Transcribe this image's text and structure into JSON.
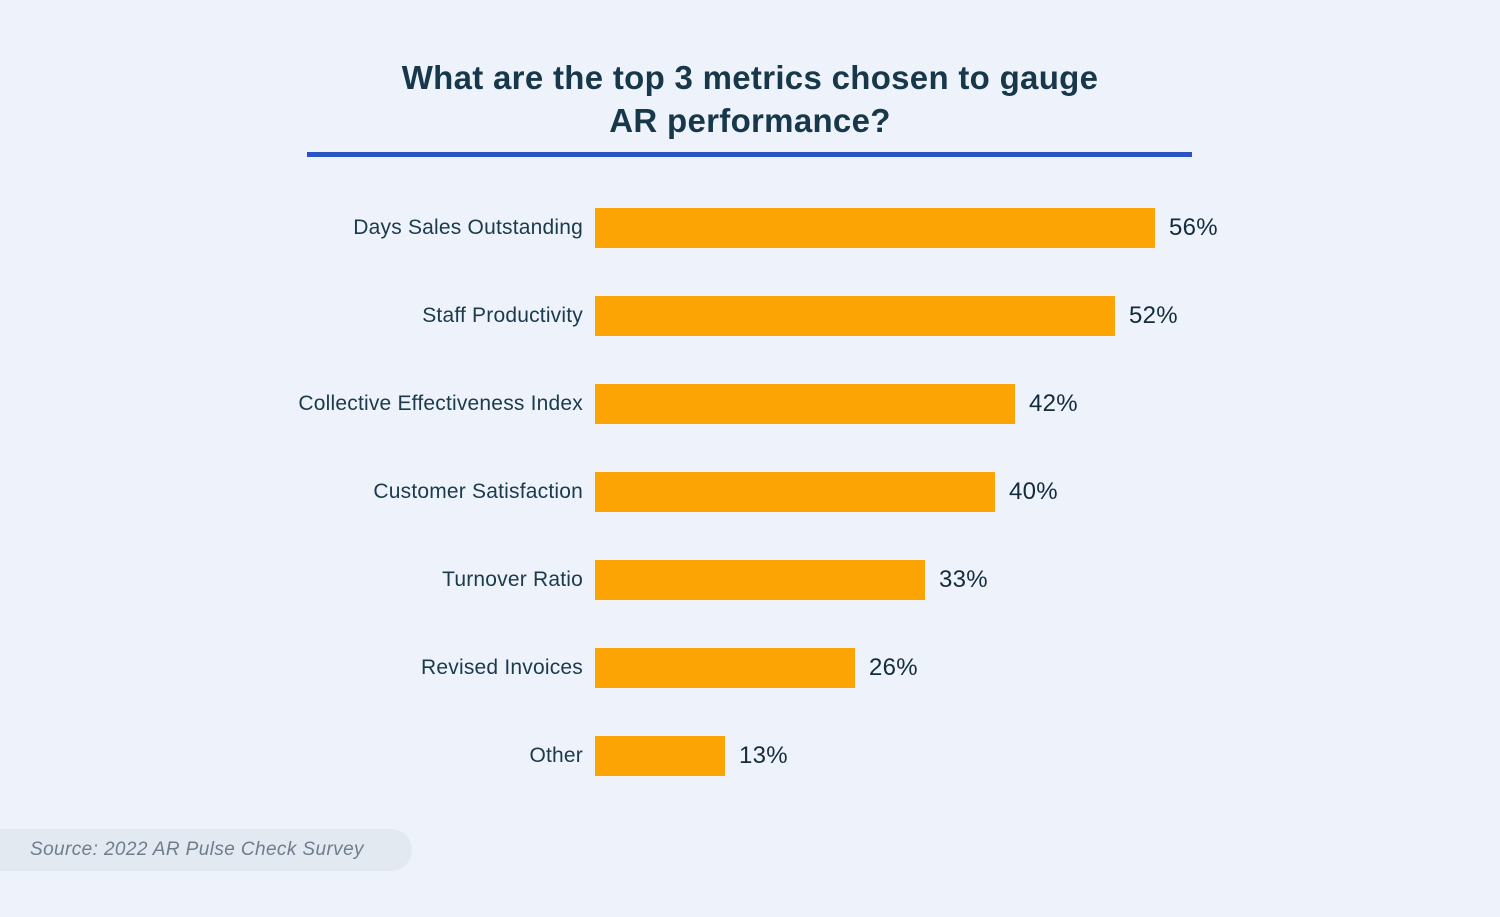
{
  "title": {
    "line1": "What are the top 3 metrics chosen to gauge",
    "line2": "AR performance?"
  },
  "source": {
    "text": "Source: 2022 AR Pulse Check Survey"
  },
  "colors": {
    "background": "#EEF2FA",
    "bar": "#FCA404",
    "title_text": "#17384A",
    "label_text": "#1B3A4C",
    "value_text": "#132C3C",
    "title_underline": "#2A53C5",
    "source_pill_bg": "#E3E9F1",
    "source_text": "#6F7D8C"
  },
  "chart_data": {
    "type": "bar",
    "orientation": "horizontal",
    "title": "What are the top 3 metrics chosen to gauge AR performance?",
    "categories": [
      "Days Sales Outstanding",
      "Staff Productivity",
      "Collective Effectiveness Index",
      "Customer Satisfaction",
      "Turnover Ratio",
      "Revised Invoices",
      "Other"
    ],
    "values": [
      56,
      52,
      42,
      40,
      33,
      26,
      13
    ],
    "value_labels": [
      "56%",
      "52%",
      "42%",
      "40%",
      "33%",
      "26%",
      "13%"
    ],
    "value_suffix": "%",
    "xlabel": "",
    "ylabel": "",
    "xlim": [
      0,
      60
    ],
    "grid": false,
    "legend": false,
    "data_labels_position": "outside-end"
  }
}
